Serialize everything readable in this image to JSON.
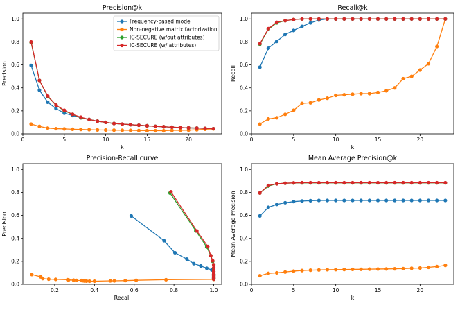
{
  "colors": {
    "frequency": "#1f77b4",
    "nmf": "#ff7f0e",
    "ic_wo": "#2ca02c",
    "ic_w": "#d62728"
  },
  "legend": [
    {
      "key": "frequency",
      "label": "Frequency-based model"
    },
    {
      "key": "nmf",
      "label": "Non-negative matrix factorization"
    },
    {
      "key": "ic_wo",
      "label": "IC-SECURE (w/out attributes)"
    },
    {
      "key": "ic_w",
      "label": "IC-SECURE (w/ attributes)"
    }
  ],
  "chart_data": [
    {
      "type": "line",
      "title": "Precision@k",
      "xlabel": "k",
      "ylabel": "Precision",
      "xlim": [
        0,
        24
      ],
      "ylim": [
        0,
        1.05
      ],
      "xticks": [
        0,
        5,
        10,
        15,
        20
      ],
      "yticks": [
        0.0,
        0.2,
        0.4,
        0.6,
        0.8,
        1.0
      ],
      "legend_position": "top-right",
      "series": [
        {
          "key": "frequency",
          "name": "Frequency-based model",
          "x": [
            1,
            2,
            3,
            4,
            5,
            6,
            7,
            8,
            9,
            10,
            11,
            12,
            13,
            14,
            15,
            16,
            17,
            18,
            19,
            20,
            21,
            22,
            23
          ],
          "y": [
            0.595,
            0.38,
            0.275,
            0.22,
            0.18,
            0.16,
            0.14,
            0.125,
            0.11,
            0.1,
            0.09,
            0.085,
            0.08,
            0.075,
            0.07,
            0.065,
            0.062,
            0.058,
            0.055,
            0.052,
            0.05,
            0.048,
            0.045
          ]
        },
        {
          "key": "nmf",
          "name": "Non-negative matrix factorization",
          "x": [
            1,
            2,
            3,
            4,
            5,
            6,
            7,
            8,
            9,
            10,
            11,
            12,
            13,
            14,
            15,
            16,
            17,
            18,
            19,
            20,
            21,
            22,
            23
          ],
          "y": [
            0.085,
            0.065,
            0.05,
            0.045,
            0.043,
            0.04,
            0.038,
            0.036,
            0.034,
            0.033,
            0.032,
            0.031,
            0.03,
            0.029,
            0.028,
            0.027,
            0.027,
            0.03,
            0.03,
            0.032,
            0.035,
            0.04,
            0.043
          ]
        },
        {
          "key": "ic_wo",
          "name": "IC-SECURE (w/out attributes)",
          "x": [
            1,
            2,
            3,
            4,
            5,
            6,
            7,
            8,
            9,
            10,
            11,
            12,
            13,
            14,
            15,
            16,
            17,
            18,
            19,
            20,
            21,
            22,
            23
          ],
          "y": [
            0.795,
            0.465,
            0.325,
            0.25,
            0.2,
            0.17,
            0.14,
            0.125,
            0.11,
            0.1,
            0.09,
            0.085,
            0.08,
            0.075,
            0.07,
            0.065,
            0.062,
            0.058,
            0.055,
            0.052,
            0.05,
            0.048,
            0.045
          ]
        },
        {
          "key": "ic_w",
          "name": "IC-SECURE (w/ attributes)",
          "x": [
            1,
            2,
            3,
            4,
            5,
            6,
            7,
            8,
            9,
            10,
            11,
            12,
            13,
            14,
            15,
            16,
            17,
            18,
            19,
            20,
            21,
            22,
            23
          ],
          "y": [
            0.8,
            0.465,
            0.33,
            0.25,
            0.205,
            0.17,
            0.145,
            0.125,
            0.11,
            0.1,
            0.09,
            0.085,
            0.08,
            0.075,
            0.07,
            0.065,
            0.062,
            0.058,
            0.055,
            0.052,
            0.05,
            0.048,
            0.045
          ]
        }
      ]
    },
    {
      "type": "line",
      "title": "Recall@k",
      "xlabel": "k",
      "ylabel": "Recall",
      "xlim": [
        0,
        24
      ],
      "ylim": [
        0,
        1.05
      ],
      "xticks": [
        0,
        5,
        10,
        15,
        20
      ],
      "yticks": [
        0.0,
        0.2,
        0.4,
        0.6,
        0.8,
        1.0
      ],
      "series": [
        {
          "key": "frequency",
          "name": "Frequency-based model",
          "x": [
            1,
            2,
            3,
            4,
            5,
            6,
            7,
            8,
            9,
            10,
            11,
            12,
            13,
            14,
            15,
            16,
            17,
            18,
            19,
            20,
            21,
            22,
            23
          ],
          "y": [
            0.58,
            0.745,
            0.805,
            0.865,
            0.9,
            0.935,
            0.965,
            0.99,
            1.0,
            1.0,
            1.0,
            1.0,
            1.0,
            1.0,
            1.0,
            1.0,
            1.0,
            1.0,
            1.0,
            1.0,
            1.0,
            1.0,
            1.0
          ]
        },
        {
          "key": "nmf",
          "name": "Non-negative matrix factorization",
          "x": [
            1,
            2,
            3,
            4,
            5,
            6,
            7,
            8,
            9,
            10,
            11,
            12,
            13,
            14,
            15,
            16,
            17,
            18,
            19,
            20,
            21,
            22,
            23
          ],
          "y": [
            0.085,
            0.13,
            0.14,
            0.17,
            0.205,
            0.265,
            0.27,
            0.295,
            0.31,
            0.335,
            0.34,
            0.345,
            0.35,
            0.35,
            0.36,
            0.375,
            0.4,
            0.48,
            0.5,
            0.555,
            0.61,
            0.76,
            1.0
          ]
        },
        {
          "key": "ic_wo",
          "name": "IC-SECURE (w/out attributes)",
          "x": [
            1,
            2,
            3,
            4,
            5,
            6,
            7,
            8,
            9,
            10,
            11,
            12,
            13,
            14,
            15,
            16,
            17,
            18,
            19,
            20,
            21,
            22,
            23
          ],
          "y": [
            0.78,
            0.91,
            0.965,
            0.985,
            0.995,
            1.0,
            1.0,
            1.0,
            1.0,
            1.0,
            1.0,
            1.0,
            1.0,
            1.0,
            1.0,
            1.0,
            1.0,
            1.0,
            1.0,
            1.0,
            1.0,
            1.0,
            1.0
          ]
        },
        {
          "key": "ic_w",
          "name": "IC-SECURE (w/ attributes)",
          "x": [
            1,
            2,
            3,
            4,
            5,
            6,
            7,
            8,
            9,
            10,
            11,
            12,
            13,
            14,
            15,
            16,
            17,
            18,
            19,
            20,
            21,
            22,
            23
          ],
          "y": [
            0.785,
            0.915,
            0.97,
            0.985,
            0.995,
            1.0,
            1.0,
            1.0,
            1.0,
            1.0,
            1.0,
            1.0,
            1.0,
            1.0,
            1.0,
            1.0,
            1.0,
            1.0,
            1.0,
            1.0,
            1.0,
            1.0,
            1.0
          ]
        }
      ]
    },
    {
      "type": "line",
      "title": "Precision-Recall curve",
      "xlabel": "Recall",
      "ylabel": "Precision",
      "xlim": [
        0.04,
        1.04
      ],
      "ylim": [
        0,
        1.05
      ],
      "xticks": [
        0.2,
        0.4,
        0.6,
        0.8,
        1.0
      ],
      "yticks": [
        0.0,
        0.2,
        0.4,
        0.6,
        0.8,
        1.0
      ],
      "series": [
        {
          "key": "frequency",
          "name": "Frequency-based model",
          "x": [
            0.585,
            0.75,
            0.805,
            0.865,
            0.9,
            0.935,
            0.965,
            0.99,
            1.0,
            1.0,
            1.0,
            1.0,
            1.0,
            1.0,
            1.0,
            1.0,
            1.0,
            1.0,
            1.0,
            1.0,
            1.0,
            1.0,
            1.0
          ],
          "y": [
            0.595,
            0.38,
            0.275,
            0.22,
            0.18,
            0.16,
            0.14,
            0.125,
            0.11,
            0.1,
            0.09,
            0.085,
            0.08,
            0.075,
            0.07,
            0.065,
            0.062,
            0.058,
            0.055,
            0.052,
            0.05,
            0.048,
            0.045
          ]
        },
        {
          "key": "nmf",
          "name": "Non-negative matrix factorization",
          "x": [
            0.085,
            0.13,
            0.14,
            0.17,
            0.205,
            0.265,
            0.27,
            0.295,
            0.31,
            0.335,
            0.34,
            0.345,
            0.35,
            0.35,
            0.36,
            0.375,
            0.4,
            0.48,
            0.5,
            0.555,
            0.61,
            0.76,
            1.0
          ],
          "y": [
            0.085,
            0.065,
            0.05,
            0.045,
            0.043,
            0.04,
            0.038,
            0.036,
            0.034,
            0.033,
            0.032,
            0.031,
            0.03,
            0.029,
            0.028,
            0.027,
            0.027,
            0.03,
            0.03,
            0.032,
            0.035,
            0.04,
            0.043
          ]
        },
        {
          "key": "ic_wo",
          "name": "IC-SECURE (w/out attributes)",
          "x": [
            0.78,
            0.91,
            0.965,
            0.985,
            0.995,
            1.0,
            1.0,
            1.0,
            1.0,
            1.0,
            1.0,
            1.0,
            1.0,
            1.0,
            1.0,
            1.0,
            1.0,
            1.0,
            1.0,
            1.0,
            1.0,
            1.0,
            1.0
          ],
          "y": [
            0.795,
            0.465,
            0.325,
            0.25,
            0.2,
            0.17,
            0.14,
            0.125,
            0.11,
            0.1,
            0.09,
            0.085,
            0.08,
            0.075,
            0.07,
            0.065,
            0.062,
            0.058,
            0.055,
            0.052,
            0.05,
            0.048,
            0.045
          ]
        },
        {
          "key": "ic_w",
          "name": "IC-SECURE (w/ attributes)",
          "x": [
            0.785,
            0.915,
            0.97,
            0.985,
            0.995,
            1.0,
            1.0,
            1.0,
            1.0,
            1.0,
            1.0,
            1.0,
            1.0,
            1.0,
            1.0,
            1.0,
            1.0,
            1.0,
            1.0,
            1.0,
            1.0,
            1.0,
            1.0
          ],
          "y": [
            0.805,
            0.465,
            0.33,
            0.25,
            0.205,
            0.17,
            0.145,
            0.125,
            0.11,
            0.1,
            0.09,
            0.085,
            0.08,
            0.075,
            0.07,
            0.065,
            0.062,
            0.058,
            0.055,
            0.052,
            0.05,
            0.048,
            0.045
          ]
        }
      ]
    },
    {
      "type": "line",
      "title": "Mean Average Precision@k",
      "xlabel": "k",
      "ylabel": "Mean Average Precision",
      "xlim": [
        0,
        24
      ],
      "ylim": [
        0,
        1.05
      ],
      "xticks": [
        0,
        5,
        10,
        15,
        20
      ],
      "yticks": [
        0.0,
        0.2,
        0.4,
        0.6,
        0.8,
        1.0
      ],
      "series": [
        {
          "key": "frequency",
          "name": "Frequency-based model",
          "x": [
            1,
            2,
            3,
            4,
            5,
            6,
            7,
            8,
            9,
            10,
            11,
            12,
            13,
            14,
            15,
            16,
            17,
            18,
            19,
            20,
            21,
            22,
            23
          ],
          "y": [
            0.595,
            0.67,
            0.695,
            0.71,
            0.72,
            0.725,
            0.728,
            0.73,
            0.73,
            0.73,
            0.73,
            0.73,
            0.73,
            0.73,
            0.73,
            0.73,
            0.73,
            0.73,
            0.73,
            0.73,
            0.73,
            0.73,
            0.73
          ]
        },
        {
          "key": "nmf",
          "name": "Non-negative matrix factorization",
          "x": [
            1,
            2,
            3,
            4,
            5,
            6,
            7,
            8,
            9,
            10,
            11,
            12,
            13,
            14,
            15,
            16,
            17,
            18,
            19,
            20,
            21,
            22,
            23
          ],
          "y": [
            0.075,
            0.095,
            0.1,
            0.107,
            0.115,
            0.12,
            0.123,
            0.125,
            0.127,
            0.128,
            0.129,
            0.13,
            0.131,
            0.132,
            0.133,
            0.134,
            0.135,
            0.137,
            0.14,
            0.142,
            0.148,
            0.155,
            0.165
          ]
        },
        {
          "key": "ic_wo",
          "name": "IC-SECURE (w/out attributes)",
          "x": [
            1,
            2,
            3,
            4,
            5,
            6,
            7,
            8,
            9,
            10,
            11,
            12,
            13,
            14,
            15,
            16,
            17,
            18,
            19,
            20,
            21,
            22,
            23
          ],
          "y": [
            0.795,
            0.855,
            0.875,
            0.88,
            0.882,
            0.883,
            0.883,
            0.883,
            0.883,
            0.883,
            0.883,
            0.883,
            0.883,
            0.883,
            0.883,
            0.883,
            0.883,
            0.883,
            0.883,
            0.883,
            0.883,
            0.883,
            0.883
          ]
        },
        {
          "key": "ic_w",
          "name": "IC-SECURE (w/ attributes)",
          "x": [
            1,
            2,
            3,
            4,
            5,
            6,
            7,
            8,
            9,
            10,
            11,
            12,
            13,
            14,
            15,
            16,
            17,
            18,
            19,
            20,
            21,
            22,
            23
          ],
          "y": [
            0.795,
            0.86,
            0.875,
            0.88,
            0.883,
            0.884,
            0.884,
            0.884,
            0.884,
            0.884,
            0.884,
            0.884,
            0.884,
            0.884,
            0.884,
            0.884,
            0.884,
            0.884,
            0.884,
            0.884,
            0.884,
            0.884,
            0.884
          ]
        }
      ]
    }
  ]
}
